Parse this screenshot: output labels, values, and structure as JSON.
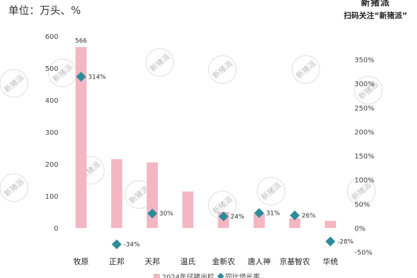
{
  "header": {
    "unit": "单位：万头、%",
    "brand_logo": "新猪派",
    "brand_slogan": "扫码关注“新猪派”",
    "watermark": "新猪派"
  },
  "chart_data": {
    "type": "bar",
    "categories": [
      "牧原",
      "正邦",
      "天邦",
      "温氏",
      "金新农",
      "唐人神",
      "京基智农",
      "华统"
    ],
    "series": [
      {
        "name": "2024年仔猪出栏",
        "kind": "bar",
        "axis": "left",
        "color": "#f4b6c2",
        "values": [
          566,
          215,
          205,
          114,
          50,
          46,
          30,
          22
        ]
      },
      {
        "name": "同比增长率",
        "kind": "scatter",
        "axis": "right",
        "color": "#2e8b99",
        "values": [
          314,
          -34,
          30,
          null,
          24,
          31,
          26,
          -28
        ],
        "labels": [
          "314%",
          "-34%",
          "30%",
          "",
          "24%",
          "31%",
          "26%",
          "-28%"
        ]
      }
    ],
    "bar_value_labels": [
      "566",
      "",
      "",
      "",
      "",
      "",
      "",
      ""
    ],
    "left_axis": {
      "min": 0,
      "max": 600,
      "ticks": [
        "0",
        "100",
        "200",
        "300",
        "400",
        "500",
        "600"
      ]
    },
    "right_axis": {
      "min": -50,
      "max": 350,
      "ticks": [
        "-50%",
        "0%",
        "50%",
        "100%",
        "150%",
        "200%",
        "250%",
        "300%",
        "350%"
      ]
    },
    "legend_position": "bottom",
    "grid": false
  }
}
